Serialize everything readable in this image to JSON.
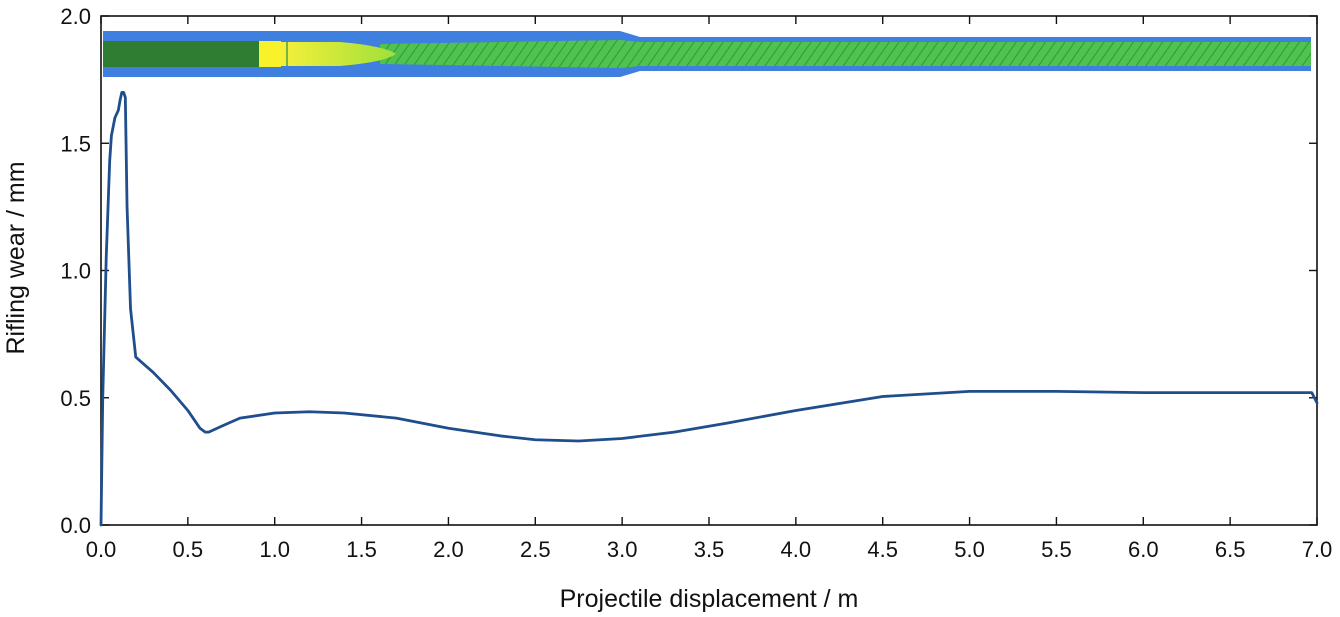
{
  "chart_data": {
    "type": "line",
    "title": "",
    "xlabel": "Projectile displacement / m",
    "ylabel": "Rifling wear / mm",
    "xlim": [
      0.0,
      7.0
    ],
    "ylim": [
      0.0,
      2.0
    ],
    "x_ticks": [
      0.0,
      0.5,
      1.0,
      1.5,
      2.0,
      2.5,
      3.0,
      3.5,
      4.0,
      4.5,
      5.0,
      5.5,
      6.0,
      6.5,
      7.0
    ],
    "x_tick_labels": [
      "0.0",
      "0.5",
      "1.0",
      "1.5",
      "2.0",
      "2.5",
      "3.0",
      "3.5",
      "4.0",
      "4.5",
      "5.0",
      "5.5",
      "6.0",
      "6.5",
      "7.0"
    ],
    "y_ticks": [
      0.0,
      0.5,
      1.0,
      1.5,
      2.0
    ],
    "y_tick_labels": [
      "0.0",
      "0.5",
      "1.0",
      "1.5",
      "2.0"
    ],
    "grid": false,
    "legend": "none",
    "line_color": "#1f4e8c",
    "series": [
      {
        "x": [
          0.0,
          0.01,
          0.03,
          0.05,
          0.06,
          0.08,
          0.1,
          0.11,
          0.12,
          0.13,
          0.14,
          0.15,
          0.17,
          0.2,
          0.3,
          0.4,
          0.5,
          0.57,
          0.6,
          0.62,
          0.7,
          0.8,
          1.0,
          1.2,
          1.4,
          1.7,
          2.0,
          2.3,
          2.5,
          2.75,
          3.0,
          3.3,
          3.6,
          4.0,
          4.5,
          5.0,
          5.2,
          5.5,
          6.0,
          6.2,
          6.5,
          6.9,
          6.97,
          7.0
        ],
        "y": [
          0.0,
          0.5,
          1.05,
          1.43,
          1.53,
          1.6,
          1.63,
          1.67,
          1.7,
          1.7,
          1.68,
          1.25,
          0.85,
          0.66,
          0.6,
          0.53,
          0.45,
          0.38,
          0.365,
          0.365,
          0.39,
          0.42,
          0.44,
          0.445,
          0.44,
          0.42,
          0.38,
          0.35,
          0.335,
          0.33,
          0.34,
          0.365,
          0.4,
          0.45,
          0.505,
          0.525,
          0.525,
          0.525,
          0.52,
          0.52,
          0.52,
          0.52,
          0.52,
          0.48
        ]
      }
    ],
    "inset": {
      "image": "gun-barrel-projectile-rendering",
      "barrel_color": "#3f7fe0",
      "chamber_color": "#2e7d32",
      "projectile_color": "#f2ef2a",
      "bore_color": "#47c247"
    }
  }
}
